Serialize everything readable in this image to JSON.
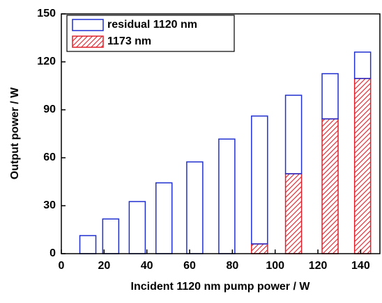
{
  "chart_data": {
    "type": "stacked-bar",
    "x_label": "Incident 1120 nm pump power / W",
    "y_label": "Output power / W",
    "x": [
      12.4,
      23.1,
      35.5,
      48,
      62.4,
      77.4,
      92.7,
      108.6,
      125.7,
      140.9
    ],
    "series": [
      {
        "name": "residual 1120 nm",
        "color": "#1f2fd0",
        "fill": "none",
        "values": [
          11.3,
          21.7,
          32.6,
          44.3,
          57.4,
          71.7,
          80,
          49.1,
          28.3,
          16.5
        ]
      },
      {
        "name": "1173 nm",
        "color": "#e0202a",
        "fill": "hatch",
        "values": [
          0,
          0,
          0,
          0,
          0,
          0,
          6.1,
          50,
          84.3,
          109.6
        ]
      }
    ],
    "xlim": [
      0,
      149
    ],
    "xticks": [
      0,
      20,
      40,
      60,
      80,
      100,
      120,
      140
    ],
    "ylim": [
      0,
      150
    ],
    "yticks": [
      0,
      30,
      60,
      90,
      120,
      150
    ],
    "legend": "upper-left"
  }
}
